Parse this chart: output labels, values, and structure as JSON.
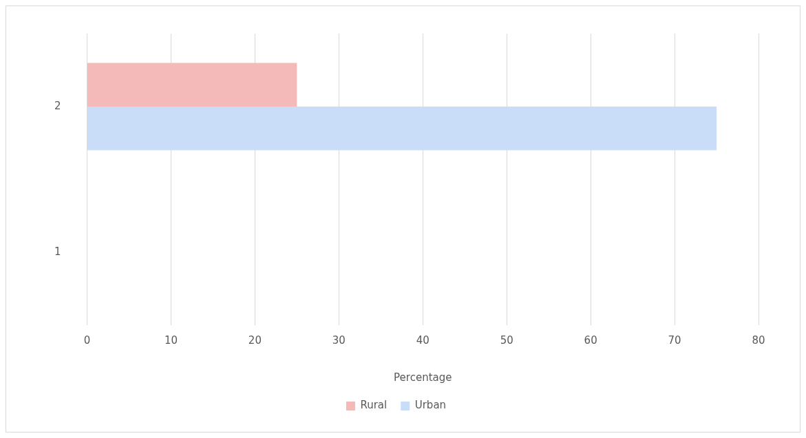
{
  "chart_data": {
    "type": "bar",
    "orientation": "horizontal",
    "xlabel": "Percentage",
    "categories": [
      "2",
      "1"
    ],
    "series": [
      {
        "name": "Rural",
        "color": "#f4b9b9",
        "values": [
          25,
          null
        ]
      },
      {
        "name": "Urban",
        "color": "#c9ddf8",
        "values": [
          75,
          null
        ]
      }
    ],
    "xlim": [
      0,
      80
    ],
    "xticks": [
      0,
      10,
      20,
      30,
      40,
      50,
      60,
      70,
      80
    ],
    "grid": "x",
    "legend": "bottom"
  }
}
